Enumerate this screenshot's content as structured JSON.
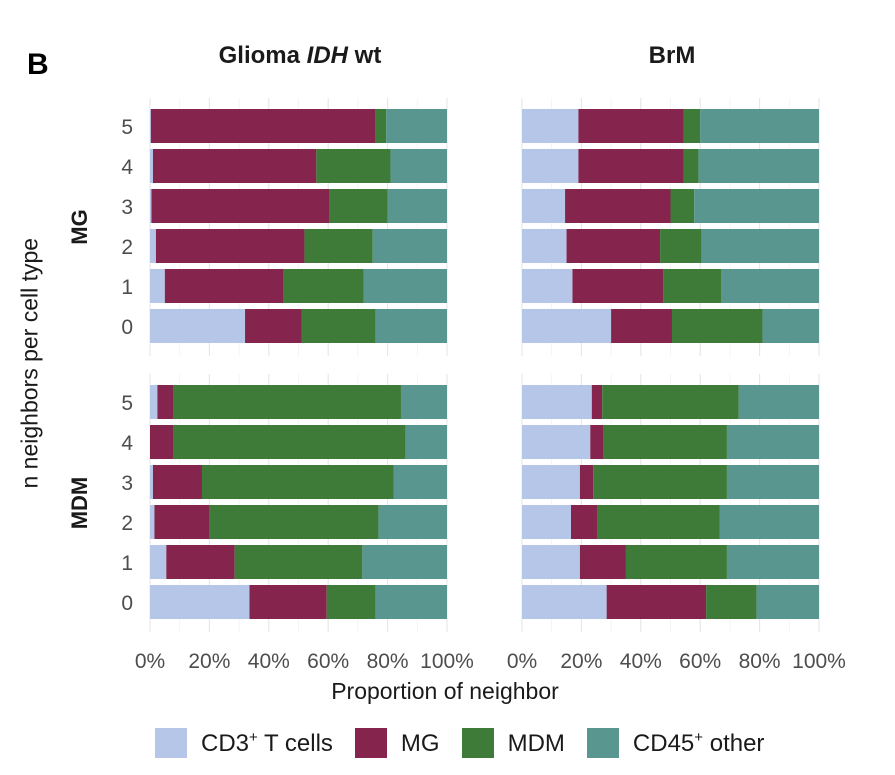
{
  "panel_label": "B",
  "legend": [
    {
      "key": "cd3",
      "prefix": "CD3",
      "sup": "+",
      "suffix": " T cells",
      "color": "#b6c6e8"
    },
    {
      "key": "mg",
      "prefix": "MG",
      "sup": "",
      "suffix": "",
      "color": "#85244d"
    },
    {
      "key": "mdm",
      "prefix": "MDM",
      "sup": "",
      "suffix": "",
      "color": "#3e7a38"
    },
    {
      "key": "cd45",
      "prefix": "CD45",
      "sup": "+",
      "suffix": " other",
      "color": "#58968f"
    }
  ],
  "chart_data": {
    "type": "bar",
    "orientation": "horizontal",
    "stacked": true,
    "title_left_prefix": "Glioma ",
    "title_left_italic": "IDH",
    "title_left_suffix": " wt",
    "title_right": "BrM",
    "xlabel": "Proportion of neighbor",
    "ylabel": "n neighbors per cell type",
    "xlim": [
      0,
      1
    ],
    "x_ticks": [
      "0%",
      "20%",
      "40%",
      "60%",
      "80%",
      "100%"
    ],
    "y_categories": [
      "0",
      "1",
      "2",
      "3",
      "4",
      "5"
    ],
    "rows": [
      "MG",
      "MDM"
    ],
    "columns": [
      "Glioma IDH wt",
      "BrM"
    ],
    "series_names": [
      "CD3+ T cells",
      "MG",
      "MDM",
      "CD45+ other"
    ],
    "panels": [
      {
        "column": "Glioma IDH wt",
        "row": "MG",
        "bars": [
          {
            "n": "5",
            "values": [
              0.003,
              0.757,
              0.035,
              0.205
            ]
          },
          {
            "n": "4",
            "values": [
              0.01,
              0.55,
              0.25,
              0.19
            ]
          },
          {
            "n": "3",
            "values": [
              0.005,
              0.6,
              0.195,
              0.2
            ]
          },
          {
            "n": "2",
            "values": [
              0.02,
              0.5,
              0.23,
              0.25
            ]
          },
          {
            "n": "1",
            "values": [
              0.05,
              0.4,
              0.27,
              0.28
            ]
          },
          {
            "n": "0",
            "values": [
              0.32,
              0.19,
              0.25,
              0.24
            ]
          }
        ]
      },
      {
        "column": "BrM",
        "row": "MG",
        "bars": [
          {
            "n": "5",
            "values": [
              0.19,
              0.355,
              0.055,
              0.4
            ]
          },
          {
            "n": "4",
            "values": [
              0.19,
              0.355,
              0.05,
              0.405
            ]
          },
          {
            "n": "3",
            "values": [
              0.145,
              0.355,
              0.08,
              0.42
            ]
          },
          {
            "n": "2",
            "values": [
              0.15,
              0.315,
              0.14,
              0.395
            ]
          },
          {
            "n": "1",
            "values": [
              0.17,
              0.305,
              0.195,
              0.33
            ]
          },
          {
            "n": "0",
            "values": [
              0.3,
              0.205,
              0.305,
              0.19
            ]
          }
        ]
      },
      {
        "column": "Glioma IDH wt",
        "row": "MDM",
        "bars": [
          {
            "n": "5",
            "values": [
              0.025,
              0.055,
              0.765,
              0.155
            ]
          },
          {
            "n": "4",
            "values": [
              0.0,
              0.08,
              0.78,
              0.14
            ]
          },
          {
            "n": "3",
            "values": [
              0.01,
              0.165,
              0.645,
              0.18
            ]
          },
          {
            "n": "2",
            "values": [
              0.015,
              0.185,
              0.57,
              0.23
            ]
          },
          {
            "n": "1",
            "values": [
              0.055,
              0.23,
              0.43,
              0.285
            ]
          },
          {
            "n": "0",
            "values": [
              0.335,
              0.26,
              0.165,
              0.24
            ]
          }
        ]
      },
      {
        "column": "BrM",
        "row": "MDM",
        "bars": [
          {
            "n": "5",
            "values": [
              0.235,
              0.035,
              0.46,
              0.27
            ]
          },
          {
            "n": "4",
            "values": [
              0.23,
              0.045,
              0.415,
              0.31
            ]
          },
          {
            "n": "3",
            "values": [
              0.195,
              0.045,
              0.45,
              0.31
            ]
          },
          {
            "n": "2",
            "values": [
              0.165,
              0.09,
              0.41,
              0.335
            ]
          },
          {
            "n": "1",
            "values": [
              0.195,
              0.155,
              0.34,
              0.31
            ]
          },
          {
            "n": "0",
            "values": [
              0.285,
              0.335,
              0.17,
              0.21
            ]
          }
        ]
      }
    ],
    "grid": true,
    "legend_position": "bottom"
  }
}
